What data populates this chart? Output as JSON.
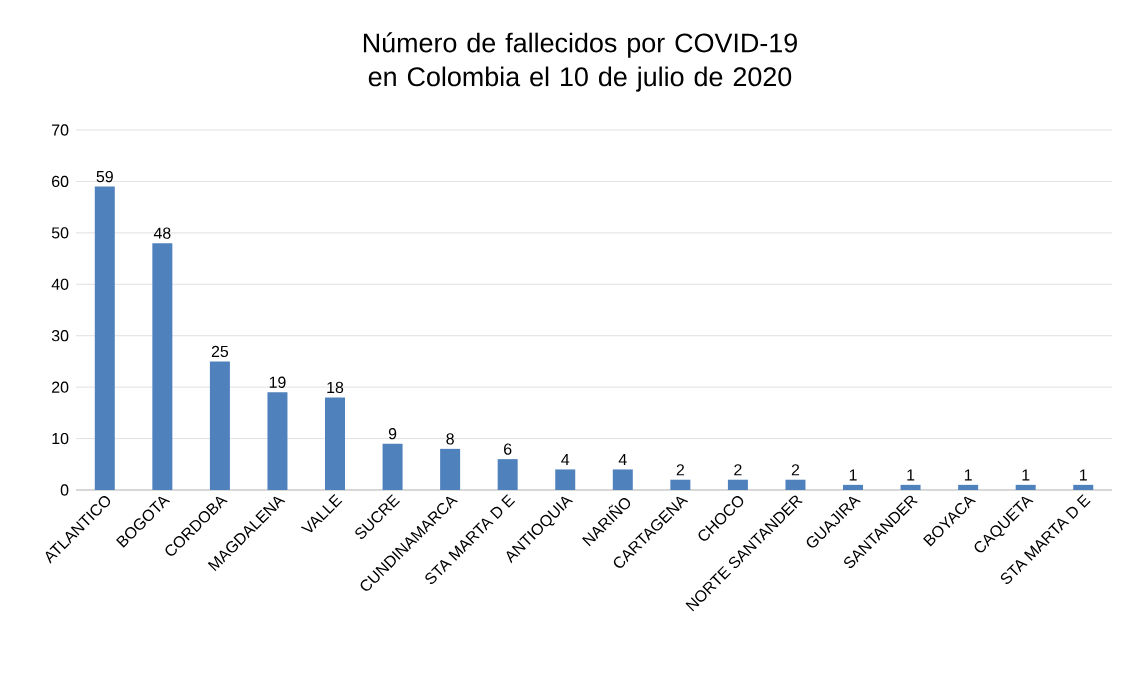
{
  "chart_data": {
    "type": "bar",
    "title": "Número de fallecidos por COVID-19 en Colombia el 10 de julio de 2020",
    "categories": [
      "ATLANTICO",
      "BOGOTA",
      "CORDOBA",
      "MAGDALENA",
      "VALLE",
      "SUCRE",
      "CUNDINAMARCA",
      "STA MARTA D E",
      "ANTIOQUIA",
      "NARIÑO",
      "CARTAGENA",
      "CHOCO",
      "NORTE SANTANDER",
      "GUAJIRA",
      "SANTANDER",
      "BOYACA",
      "CAQUETA",
      "STA MARTA D E"
    ],
    "values": [
      59,
      48,
      25,
      19,
      18,
      9,
      8,
      6,
      4,
      4,
      2,
      2,
      2,
      1,
      1,
      1,
      1,
      1
    ],
    "color": "#4f81bd",
    "ylim": [
      0,
      70
    ],
    "yticks": [
      0,
      10,
      20,
      30,
      40,
      50,
      60,
      70
    ],
    "grid": "y",
    "data_labels": true
  }
}
